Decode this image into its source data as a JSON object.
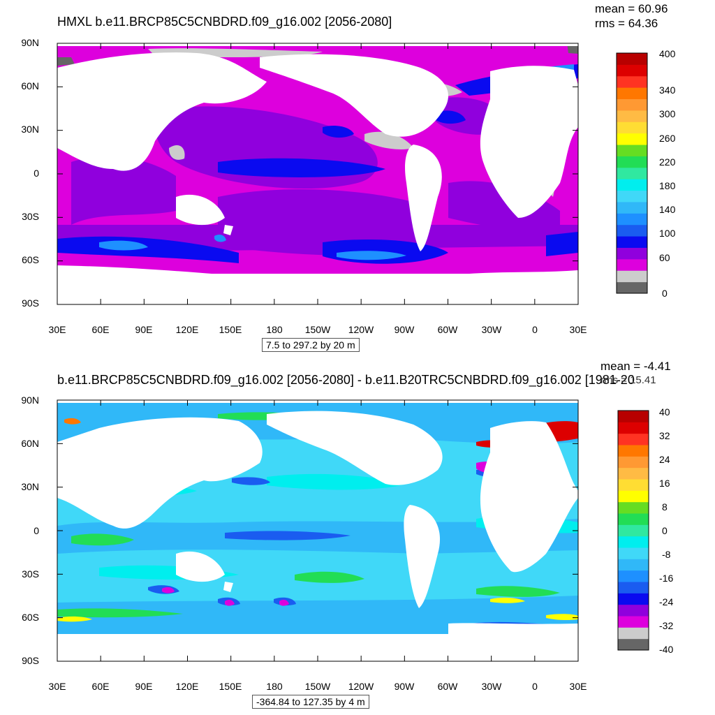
{
  "panels": [
    {
      "title": "HMXL b.e11.BRCP85C5CNBDRD.f09_g16.002 [2056-2080]",
      "mean": "mean = 60.96",
      "rms": "rms = 64.36",
      "info": "7.5 to 297.2 by 20 m",
      "lat_labels": [
        "90N",
        "60N",
        "30N",
        "0",
        "30S",
        "60S",
        "90S"
      ],
      "lon_labels": [
        "30E",
        "60E",
        "90E",
        "120E",
        "150E",
        "180",
        "150W",
        "120W",
        "90W",
        "60W",
        "30W",
        "0",
        "30E"
      ],
      "colorbar": {
        "colors": [
          "#666666",
          "#cccccc",
          "#dd00dd",
          "#9000dd",
          "#0a0af0",
          "#1a5cf0",
          "#1e90ff",
          "#30b8f8",
          "#40d8f8",
          "#00eeee",
          "#30e8a0",
          "#22dd55",
          "#66dd22",
          "#ffff00",
          "#ffdd33",
          "#ffbb44",
          "#ff9933",
          "#ff7700",
          "#ff3322",
          "#dd0000",
          "#b80000"
        ],
        "labels": [
          "0",
          "60",
          "100",
          "140",
          "180",
          "220",
          "260",
          "300",
          "340",
          "400"
        ]
      }
    },
    {
      "title": "b.e11.BRCP85C5CNBDRD.f09_g16.002 [2056-2080] - b.e11.B20TRC5CNBDRD.f09_g16.002 [1981-20",
      "mean": "mean = -4.41",
      "rms": "rms = 15.41",
      "info": "-364.84 to 127.35 by 4 m",
      "lat_labels": [
        "90N",
        "60N",
        "30N",
        "0",
        "30S",
        "60S",
        "90S"
      ],
      "lon_labels": [
        "30E",
        "60E",
        "90E",
        "120E",
        "150E",
        "180",
        "150W",
        "120W",
        "90W",
        "60W",
        "30W",
        "0",
        "30E"
      ],
      "colorbar": {
        "colors": [
          "#666666",
          "#cccccc",
          "#dd00dd",
          "#9000dd",
          "#0a0af0",
          "#1a5cf0",
          "#1e90ff",
          "#30b8f8",
          "#40d8f8",
          "#00eeee",
          "#30e8a0",
          "#22dd55",
          "#66dd22",
          "#ffff00",
          "#ffdd33",
          "#ffbb44",
          "#ff9933",
          "#ff7700",
          "#ff3322",
          "#dd0000",
          "#b80000"
        ],
        "labels": [
          "-40",
          "-32",
          "-24",
          "-16",
          "-8",
          "0",
          "8",
          "16",
          "24",
          "32",
          "40"
        ]
      }
    }
  ]
}
